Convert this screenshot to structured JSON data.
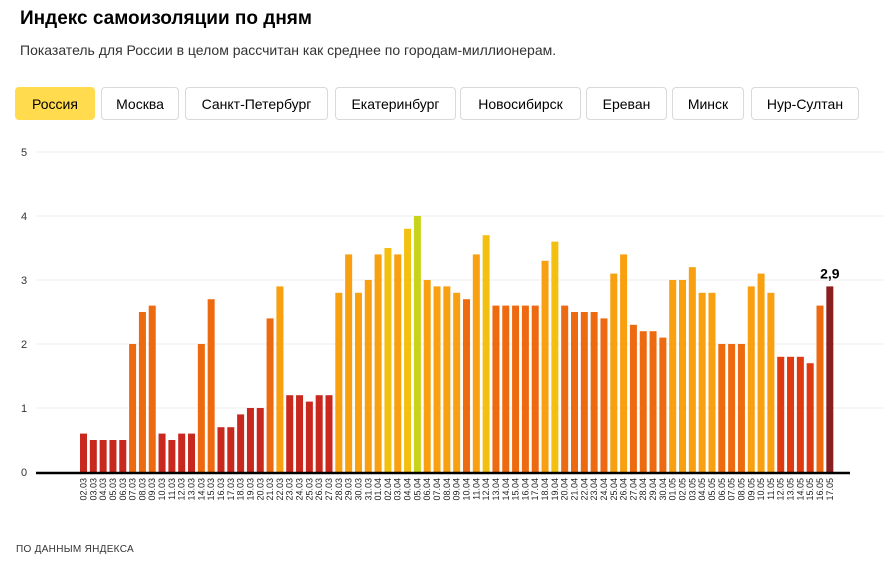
{
  "header": {
    "title": "Индекс самоизоляции по дням",
    "subtitle": "Показатель для России в целом рассчитан как среднее по городам-миллионерам."
  },
  "tabs": [
    {
      "label": "Россия",
      "active": true
    },
    {
      "label": "Москва",
      "active": false
    },
    {
      "label": "Санкт-Петербург",
      "active": false
    },
    {
      "label": "Екатеринбург",
      "active": false
    },
    {
      "label": "Новосибирск",
      "active": false
    },
    {
      "label": "Ереван",
      "active": false
    },
    {
      "label": "Минск",
      "active": false
    },
    {
      "label": "Нур-Султан",
      "active": false
    }
  ],
  "colors": {
    "accent_tab": "#ffdb4d",
    "scale": [
      "#c8281e",
      "#e03a10",
      "#ee6a10",
      "#f8a010",
      "#f4c010",
      "#c8d41a"
    ],
    "last_bar": "#8b1f1f"
  },
  "footer": {
    "source": "ПО ДАННЫМ ЯНДЕКСА"
  },
  "chart_data": {
    "type": "bar",
    "title": "Индекс самоизоляции по дням",
    "xlabel": "",
    "ylabel": "",
    "ylim": [
      0,
      5
    ],
    "yticks": [
      "0",
      "1",
      "2",
      "3",
      "4",
      "5"
    ],
    "grid": true,
    "highlight_label": "2,9",
    "categories": [
      "02.03",
      "03.03",
      "04.03",
      "05.03",
      "06.03",
      "07.03",
      "08.03",
      "09.03",
      "10.03",
      "11.03",
      "12.03",
      "13.03",
      "14.03",
      "15.03",
      "16.03",
      "17.03",
      "18.03",
      "19.03",
      "20.03",
      "21.03",
      "22.03",
      "23.03",
      "24.03",
      "25.03",
      "26.03",
      "27.03",
      "28.03",
      "29.03",
      "30.03",
      "31.03",
      "01.04",
      "02.04",
      "03.04",
      "04.04",
      "05.04",
      "06.04",
      "07.04",
      "08.04",
      "09.04",
      "10.04",
      "11.04",
      "12.04",
      "13.04",
      "14.04",
      "15.04",
      "16.04",
      "17.04",
      "18.04",
      "19.04",
      "20.04",
      "21.04",
      "22.04",
      "23.04",
      "24.04",
      "25.04",
      "26.04",
      "27.04",
      "28.04",
      "29.04",
      "30.04",
      "01.05",
      "02.05",
      "03.05",
      "04.05",
      "05.05",
      "06.05",
      "07.05",
      "08.05",
      "09.05",
      "10.05",
      "11.05",
      "12.05",
      "13.05",
      "14.05",
      "15.05",
      "16.05",
      "17.05"
    ],
    "values": [
      0.6,
      0.5,
      0.5,
      0.5,
      0.5,
      2.0,
      2.5,
      2.6,
      0.6,
      0.5,
      0.6,
      0.6,
      2.0,
      2.7,
      0.7,
      0.7,
      0.9,
      1.0,
      1.0,
      2.4,
      2.9,
      1.2,
      1.2,
      1.1,
      1.2,
      1.2,
      2.8,
      3.4,
      2.8,
      3.0,
      3.4,
      3.5,
      3.4,
      3.8,
      4.0,
      3.0,
      2.9,
      2.9,
      2.8,
      2.7,
      3.4,
      3.7,
      2.6,
      2.6,
      2.6,
      2.6,
      2.6,
      3.3,
      3.6,
      2.6,
      2.5,
      2.5,
      2.5,
      2.4,
      3.1,
      3.4,
      2.3,
      2.2,
      2.2,
      2.1,
      3.0,
      3.0,
      3.2,
      2.8,
      2.8,
      2.0,
      2.0,
      2.0,
      2.9,
      3.1,
      2.8,
      1.8,
      1.8,
      1.8,
      1.7,
      2.6,
      2.9
    ]
  }
}
